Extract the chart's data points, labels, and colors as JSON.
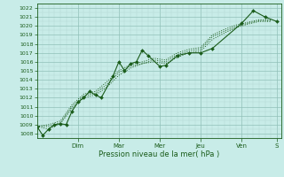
{
  "title": "Pression niveau de la mer( hPa )",
  "bg_color": "#c8ece8",
  "plot_bg_color": "#c8ece8",
  "grid_color": "#90c0b8",
  "minor_grid_color": "#b0d8d0",
  "line_color": "#1a5c1a",
  "ylim": [
    1007.5,
    1022.5
  ],
  "yticks": [
    1008,
    1009,
    1010,
    1011,
    1012,
    1013,
    1014,
    1015,
    1016,
    1017,
    1018,
    1019,
    1020,
    1021,
    1022
  ],
  "day_labels": [
    "Dim",
    "Mar",
    "Mer",
    "Jeu",
    "Ven",
    "S"
  ],
  "xlim_start": 0,
  "xlim_end": 167,
  "day_x_positions": [
    28,
    56,
    84,
    112,
    140,
    164
  ],
  "series1_x": [
    0,
    4,
    8,
    12,
    16,
    20,
    24,
    28,
    32,
    36,
    40,
    44,
    52,
    56,
    60,
    64,
    68,
    72,
    76,
    84,
    88,
    96,
    104,
    112,
    120,
    140,
    148,
    156,
    164
  ],
  "series1_y": [
    1008.8,
    1007.8,
    1008.5,
    1009.0,
    1009.1,
    1009.0,
    1010.5,
    1011.5,
    1012.0,
    1012.7,
    1012.3,
    1012.0,
    1014.4,
    1016.0,
    1015.0,
    1015.8,
    1016.0,
    1017.3,
    1016.7,
    1015.5,
    1015.6,
    1016.7,
    1017.0,
    1017.0,
    1017.5,
    1020.3,
    1021.7,
    1021.0,
    1020.5
  ],
  "series2_x": [
    0,
    8,
    16,
    24,
    32,
    40,
    48,
    56,
    64,
    72,
    80,
    88,
    96,
    104,
    112,
    120,
    128,
    136,
    144,
    152,
    160
  ],
  "series2_y": [
    1008.8,
    1008.5,
    1009.1,
    1010.8,
    1012.0,
    1012.3,
    1013.2,
    1014.5,
    1015.3,
    1015.8,
    1016.0,
    1015.8,
    1016.5,
    1017.0,
    1017.2,
    1018.5,
    1019.2,
    1019.8,
    1020.2,
    1020.5,
    1020.5
  ],
  "series3_x": [
    0,
    8,
    16,
    24,
    32,
    40,
    48,
    56,
    64,
    72,
    80,
    88,
    96,
    104,
    112,
    120,
    128,
    136,
    144,
    152,
    160
  ],
  "series3_y": [
    1008.8,
    1008.8,
    1009.2,
    1011.0,
    1012.2,
    1012.5,
    1013.5,
    1014.8,
    1015.5,
    1015.8,
    1016.2,
    1016.0,
    1016.8,
    1017.2,
    1017.4,
    1018.8,
    1019.4,
    1019.9,
    1020.3,
    1020.6,
    1020.6
  ],
  "series4_x": [
    0,
    8,
    16,
    24,
    32,
    40,
    48,
    56,
    64,
    72,
    80,
    88,
    96,
    104,
    112,
    120,
    128,
    136,
    144,
    152,
    160
  ],
  "series4_y": [
    1008.8,
    1009.0,
    1009.4,
    1011.2,
    1012.4,
    1012.7,
    1013.8,
    1015.0,
    1015.7,
    1016.0,
    1016.4,
    1016.2,
    1017.0,
    1017.4,
    1017.6,
    1019.0,
    1019.6,
    1020.1,
    1020.4,
    1020.7,
    1020.7
  ]
}
